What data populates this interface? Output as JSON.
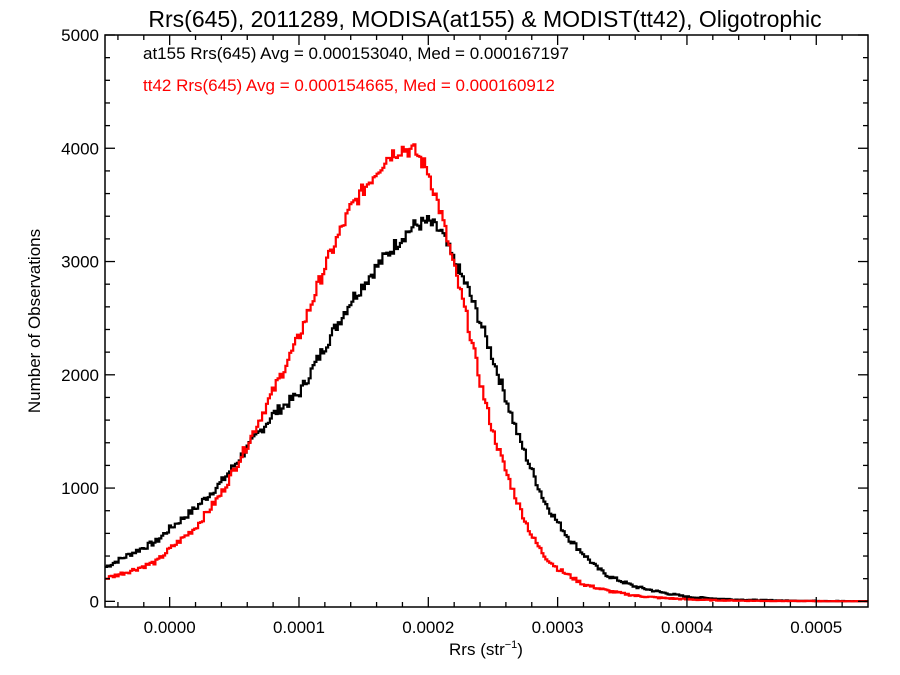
{
  "chart_data": {
    "type": "line",
    "step": true,
    "title": "Rrs(645), 2011289, MODISA(at155) & MODIST(tt42), Oligotrophic",
    "xlabel_text": "Rrs (str",
    "xlabel_sup": "−1",
    "xlabel_tail": ")",
    "ylabel": "Number of Observations",
    "xlim": [
      -5e-05,
      0.00054
    ],
    "ylim": [
      -50,
      5000
    ],
    "x_ticks": [
      {
        "v": 0.0,
        "label": "0.0000"
      },
      {
        "v": 0.0001,
        "label": "0.0001"
      },
      {
        "v": 0.0002,
        "label": "0.0002"
      },
      {
        "v": 0.0003,
        "label": "0.0003"
      },
      {
        "v": 0.0004,
        "label": "0.0004"
      },
      {
        "v": 0.0005,
        "label": "0.0005"
      }
    ],
    "y_ticks": [
      {
        "v": 0,
        "label": "0"
      },
      {
        "v": 1000,
        "label": "1000"
      },
      {
        "v": 2000,
        "label": "2000"
      },
      {
        "v": 3000,
        "label": "3000"
      },
      {
        "v": 4000,
        "label": "4000"
      },
      {
        "v": 5000,
        "label": "5000"
      }
    ],
    "legend_placement": "top-left",
    "series": [
      {
        "name": "at155",
        "color": "#000000",
        "legend_text": "at155 Rrs(645) Avg = 0.000153040, Med = 0.000167197",
        "x": [
          -5e-05,
          -3e-05,
          -1e-05,
          0.0,
          2e-05,
          4e-05,
          6e-05,
          8e-05,
          0.0001,
          0.00012,
          0.00014,
          0.00016,
          0.00018,
          0.00019,
          0.0002,
          0.00021,
          0.00022,
          0.00023,
          0.00024,
          0.00025,
          0.00026,
          0.00027,
          0.00028,
          0.00029,
          0.0003,
          0.00031,
          0.00032,
          0.00033,
          0.00034,
          0.00036,
          0.00038,
          0.0004,
          0.00042,
          0.00044,
          0.00046,
          0.00048,
          0.0005,
          0.00052,
          0.00054
        ],
        "values": [
          300,
          420,
          530,
          640,
          820,
          1050,
          1350,
          1650,
          1830,
          2250,
          2650,
          2950,
          3220,
          3320,
          3350,
          3260,
          3000,
          2780,
          2480,
          2150,
          1800,
          1450,
          1160,
          880,
          700,
          540,
          420,
          300,
          220,
          130,
          80,
          40,
          25,
          15,
          10,
          6,
          4,
          2,
          1
        ]
      },
      {
        "name": "tt42",
        "color": "#ff0000",
        "legend_text": "tt42 Rrs(645) Avg = 0.000154665, Med = 0.000160912",
        "x": [
          -5e-05,
          -3e-05,
          -1e-05,
          0.0,
          2e-05,
          4e-05,
          6e-05,
          8e-05,
          0.0001,
          0.00012,
          0.00014,
          0.00016,
          0.00017,
          0.00018,
          0.00019,
          0.0002,
          0.00021,
          0.00022,
          0.00023,
          0.00024,
          0.00025,
          0.00026,
          0.00027,
          0.00028,
          0.00029,
          0.0003,
          0.00031,
          0.00032,
          0.00034,
          0.00036,
          0.00038,
          0.0004,
          0.00042,
          0.00044,
          0.00046,
          0.00048,
          0.0005,
          0.00052,
          0.00054
        ],
        "values": [
          200,
          270,
          350,
          460,
          650,
          950,
          1380,
          1850,
          2330,
          2950,
          3470,
          3800,
          3940,
          4000,
          3970,
          3800,
          3420,
          2950,
          2500,
          1950,
          1500,
          1150,
          850,
          580,
          400,
          290,
          220,
          150,
          90,
          50,
          30,
          18,
          10,
          6,
          4,
          3,
          2,
          1,
          1
        ]
      }
    ]
  }
}
